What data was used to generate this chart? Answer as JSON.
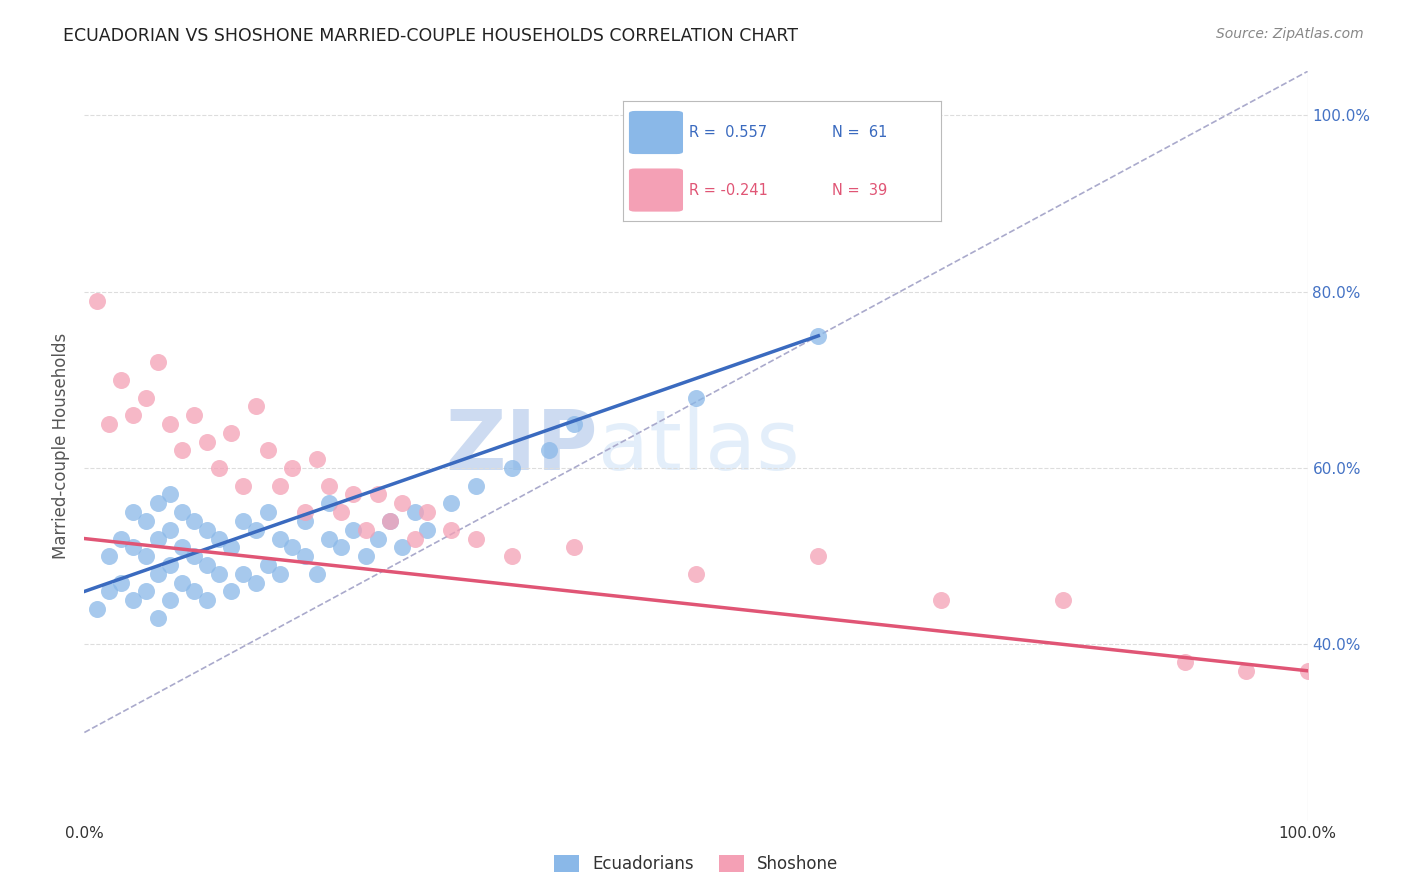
{
  "title": "ECUADORIAN VS SHOSHONE MARRIED-COUPLE HOUSEHOLDS CORRELATION CHART",
  "source": "Source: ZipAtlas.com",
  "ylabel": "Married-couple Households",
  "xlim": [
    0,
    100
  ],
  "ylim": [
    20,
    105
  ],
  "y_ticks_right": [
    40,
    60,
    80,
    100
  ],
  "y_tick_labels_right": [
    "40.0%",
    "60.0%",
    "80.0%",
    "100.0%"
  ],
  "ecuadorian_color": "#8ab8e8",
  "shoshone_color": "#f4a0b5",
  "trend_blue": "#3a6abf",
  "trend_pink": "#e05575",
  "watermark_zip": "ZIP",
  "watermark_atlas": "atlas",
  "background_color": "#ffffff",
  "ecuadorian_x": [
    1,
    2,
    2,
    3,
    3,
    4,
    4,
    4,
    5,
    5,
    5,
    6,
    6,
    6,
    6,
    7,
    7,
    7,
    7,
    8,
    8,
    8,
    9,
    9,
    9,
    10,
    10,
    10,
    11,
    11,
    12,
    12,
    13,
    13,
    14,
    14,
    15,
    15,
    16,
    16,
    17,
    18,
    18,
    19,
    20,
    20,
    21,
    22,
    23,
    24,
    25,
    26,
    27,
    28,
    30,
    32,
    35,
    38,
    40,
    50,
    60
  ],
  "ecuadorian_y": [
    44,
    46,
    50,
    47,
    52,
    45,
    51,
    55,
    46,
    50,
    54,
    43,
    48,
    52,
    56,
    45,
    49,
    53,
    57,
    47,
    51,
    55,
    46,
    50,
    54,
    45,
    49,
    53,
    48,
    52,
    46,
    51,
    48,
    54,
    47,
    53,
    49,
    55,
    48,
    52,
    51,
    50,
    54,
    48,
    52,
    56,
    51,
    53,
    50,
    52,
    54,
    51,
    55,
    53,
    56,
    58,
    60,
    62,
    65,
    68,
    75
  ],
  "shoshone_x": [
    1,
    2,
    3,
    4,
    5,
    6,
    7,
    8,
    9,
    10,
    11,
    12,
    13,
    14,
    15,
    16,
    17,
    18,
    19,
    20,
    21,
    22,
    23,
    24,
    25,
    26,
    27,
    28,
    30,
    32,
    35,
    40,
    50,
    60,
    70,
    80,
    90,
    95,
    100
  ],
  "shoshone_y": [
    79,
    65,
    70,
    66,
    68,
    72,
    65,
    62,
    66,
    63,
    60,
    64,
    58,
    67,
    62,
    58,
    60,
    55,
    61,
    58,
    55,
    57,
    53,
    57,
    54,
    56,
    52,
    55,
    53,
    52,
    50,
    51,
    48,
    50,
    45,
    45,
    38,
    37,
    37
  ],
  "blue_trend_x0": 0,
  "blue_trend_y0": 46,
  "blue_trend_x1": 60,
  "blue_trend_y1": 75,
  "pink_trend_x0": 0,
  "pink_trend_y0": 52,
  "pink_trend_x1": 100,
  "pink_trend_y1": 37,
  "diag_x0": 0,
  "diag_y0": 30,
  "diag_x1": 100,
  "diag_y1": 105
}
